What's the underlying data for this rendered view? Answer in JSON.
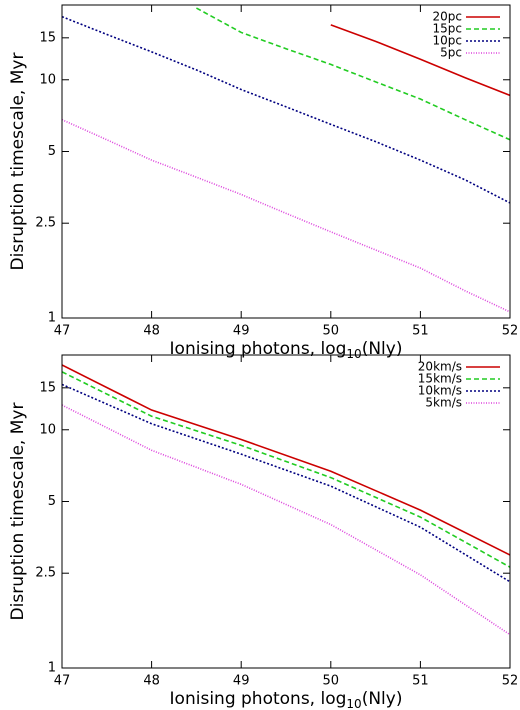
{
  "chart_data": [
    {
      "type": "line",
      "x_label": [
        "Ionising photons, log",
        "10",
        "(Nly)"
      ],
      "y_label": "Disruption timescale, Myr",
      "x": [
        47,
        47.5,
        48,
        48.5,
        49,
        49.5,
        50,
        50.5,
        51,
        51.5,
        52
      ],
      "series": [
        {
          "name": "20pc",
          "color": "#cc0000",
          "dash": "solid",
          "values": [
            null,
            null,
            null,
            null,
            null,
            null,
            17,
            14.5,
            12.2,
            10.2,
            8.6
          ]
        },
        {
          "name": "15pc",
          "color": "#22cc22",
          "dash": "dashed",
          "values": [
            null,
            null,
            null,
            20,
            15.8,
            13.5,
            11.6,
            9.8,
            8.3,
            6.8,
            5.6
          ]
        },
        {
          "name": "10pc",
          "color": "#000080",
          "dash": "dotted",
          "values": [
            18.4,
            15.5,
            13.1,
            11.0,
            9.1,
            7.7,
            6.5,
            5.5,
            4.6,
            3.8,
            3.04
          ]
        },
        {
          "name": "5pc",
          "color": "#dd44dd",
          "dash": "fine",
          "values": [
            6.8,
            5.6,
            4.6,
            3.9,
            3.3,
            2.75,
            2.3,
            1.93,
            1.62,
            1.3,
            1.06
          ]
        }
      ],
      "xlim": [
        47,
        52
      ],
      "xticks": [
        47,
        48,
        49,
        50,
        51,
        52
      ],
      "ylim": [
        1,
        20.6
      ],
      "yticks": [
        1,
        2.5,
        5,
        10,
        15
      ],
      "log_y": true,
      "legend": "upper right"
    },
    {
      "type": "line",
      "x_label": [
        "Ionising photons, log",
        "10",
        "(Nly)"
      ],
      "y_label": "Disruption timescale, Myr",
      "x": [
        47,
        48,
        49,
        50,
        51,
        52
      ],
      "series": [
        {
          "name": "20km/s",
          "color": "#cc0000",
          "dash": "solid",
          "values": [
            18.7,
            12.1,
            9.1,
            6.7,
            4.6,
            2.98
          ]
        },
        {
          "name": "15km/s",
          "color": "#22cc22",
          "dash": "dashed",
          "values": [
            17.5,
            11.4,
            8.6,
            6.3,
            4.3,
            2.65
          ]
        },
        {
          "name": "10km/s",
          "color": "#000080",
          "dash": "dotted",
          "values": [
            15.5,
            10.6,
            7.9,
            5.8,
            3.9,
            2.3
          ]
        },
        {
          "name": "5km/s",
          "color": "#dd44dd",
          "dash": "fine",
          "values": [
            12.7,
            8.2,
            5.9,
            4.0,
            2.46,
            1.38
          ]
        }
      ],
      "xlim": [
        47,
        52
      ],
      "xticks": [
        47,
        48,
        49,
        50,
        51,
        52
      ],
      "ylim": [
        1,
        20.6
      ],
      "yticks": [
        1,
        2.5,
        5,
        10,
        15
      ],
      "log_y": true,
      "legend": "upper right"
    }
  ]
}
